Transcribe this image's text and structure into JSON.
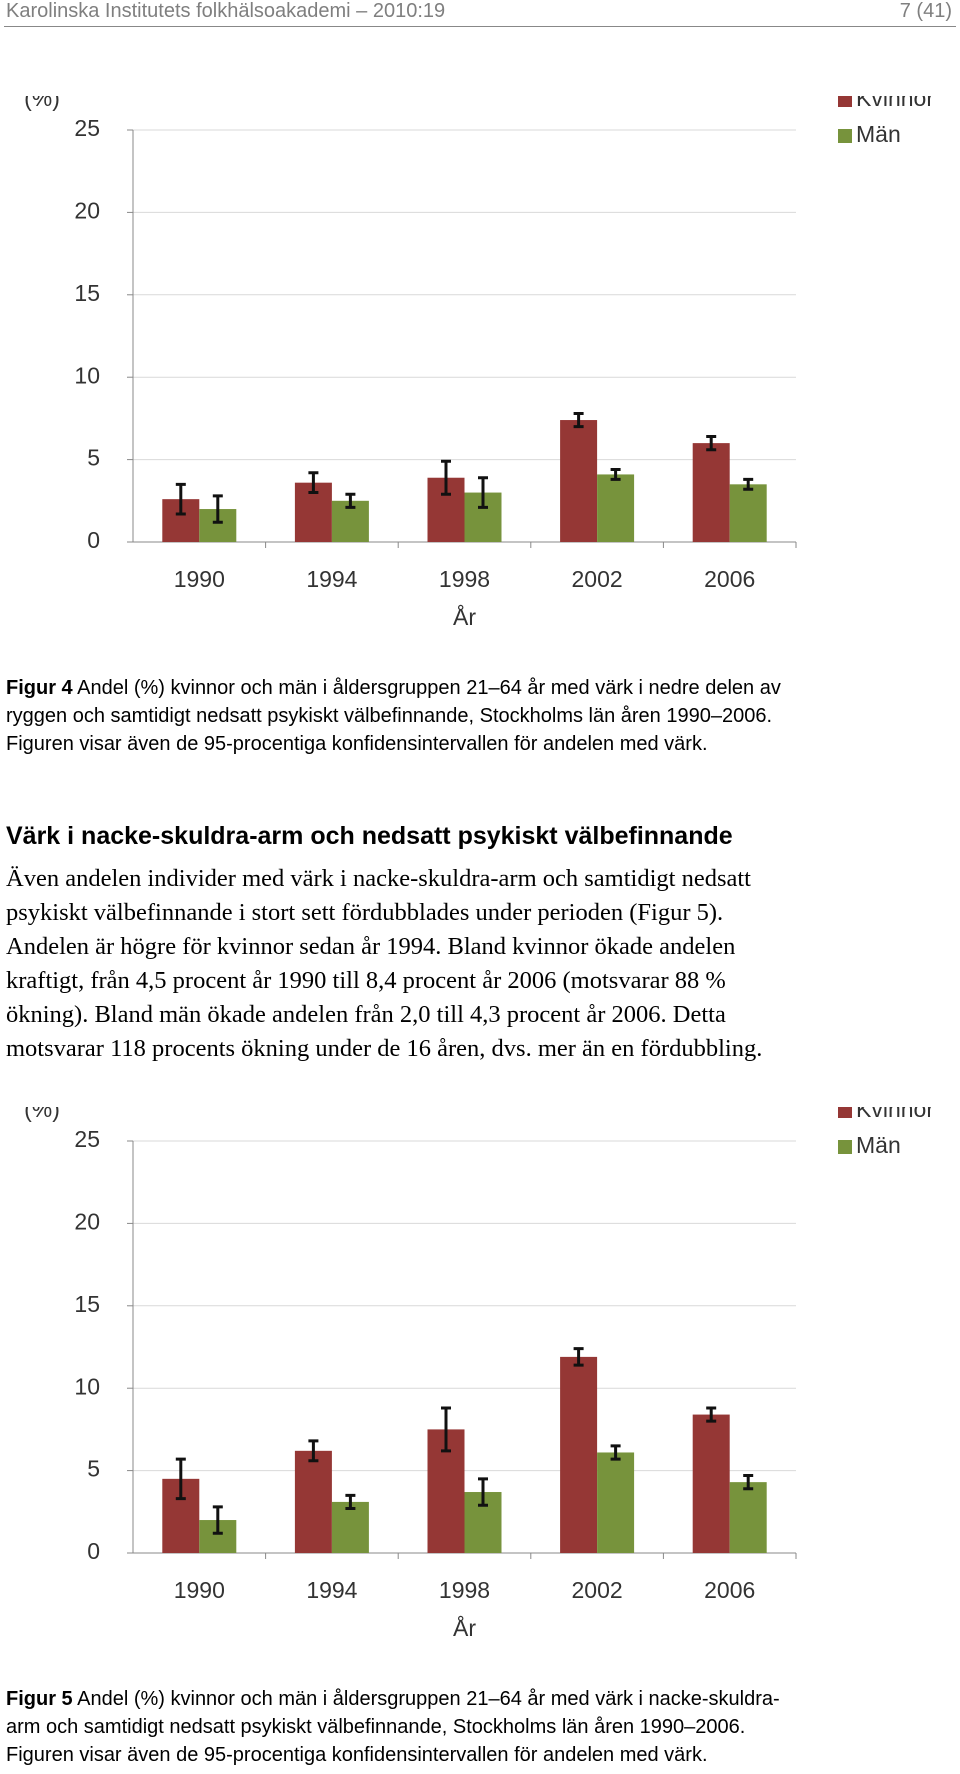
{
  "header": {
    "left": "Karolinska Institutets folkhälsoakademi – 2010:19",
    "right": "7 (41)"
  },
  "chart_data": [
    {
      "type": "bar",
      "ylabel": "(%)",
      "xlabel": "År",
      "categories": [
        "1990",
        "1994",
        "1998",
        "2002",
        "2006"
      ],
      "series": [
        {
          "name": "Kvinnor",
          "color": "#953735",
          "values": [
            2.6,
            3.6,
            3.9,
            7.4,
            6.0
          ],
          "errors": [
            0.9,
            0.6,
            1.0,
            0.4,
            0.4
          ]
        },
        {
          "name": "Män",
          "color": "#77933c",
          "values": [
            2.0,
            2.5,
            3.0,
            4.1,
            3.5
          ],
          "errors": [
            0.8,
            0.4,
            0.9,
            0.3,
            0.3
          ]
        }
      ],
      "ylim": [
        0,
        25
      ],
      "yticks": [
        0,
        5,
        10,
        15,
        20,
        25
      ],
      "grid": true,
      "legend": "top-right"
    },
    {
      "type": "bar",
      "ylabel": "(%)",
      "xlabel": "År",
      "categories": [
        "1990",
        "1994",
        "1998",
        "2002",
        "2006"
      ],
      "series": [
        {
          "name": "Kvinnor",
          "color": "#953735",
          "values": [
            4.5,
            6.2,
            7.5,
            11.9,
            8.4
          ],
          "errors": [
            1.2,
            0.6,
            1.3,
            0.5,
            0.4
          ]
        },
        {
          "name": "Män",
          "color": "#77933c",
          "values": [
            2.0,
            3.1,
            3.7,
            6.1,
            4.3
          ],
          "errors": [
            0.8,
            0.4,
            0.8,
            0.4,
            0.4
          ]
        }
      ],
      "ylim": [
        0,
        25
      ],
      "yticks": [
        0,
        5,
        10,
        15,
        20,
        25
      ],
      "grid": true,
      "legend": "top-right"
    }
  ],
  "captions": [
    {
      "label": "Figur 4",
      "lines": [
        "Andel (%) kvinnor och män i åldersgruppen 21–64 år med värk i nedre delen av",
        "ryggen och samtidigt nedsatt psykiskt välbefinnande, Stockholms län åren 1990–2006.",
        "Figuren visar även de 95-procentiga konfidensintervallen för andelen med värk."
      ]
    },
    {
      "label": "Figur 5",
      "lines": [
        "Andel (%) kvinnor och män i åldersgruppen 21–64 år med värk i nacke-skuldra-",
        "arm och samtidigt nedsatt psykiskt välbefinnande, Stockholms län åren 1990–2006.",
        "Figuren visar även de 95-procentiga konfidensintervallen för andelen med värk."
      ]
    }
  ],
  "section": {
    "heading": "Värk i nacke-skuldra-arm och nedsatt psykiskt välbefinnande",
    "lines": [
      "Även andelen individer med värk i nacke-skuldra-arm och samtidigt nedsatt",
      "psykiskt välbefinnande i stort sett fördubblades under perioden (Figur 5).",
      "Andelen är högre för kvinnor sedan år 1994. Bland kvinnor ökade andelen",
      "kraftigt, från 4,5 procent år 1990 till 8,4 procent år 2006 (motsvarar 88 %",
      "ökning). Bland män ökade andelen från 2,0 till 4,3 procent år 2006. Detta",
      "motsvarar 118 procents ökning under de 16 åren, dvs. mer än en fördubbling."
    ]
  }
}
